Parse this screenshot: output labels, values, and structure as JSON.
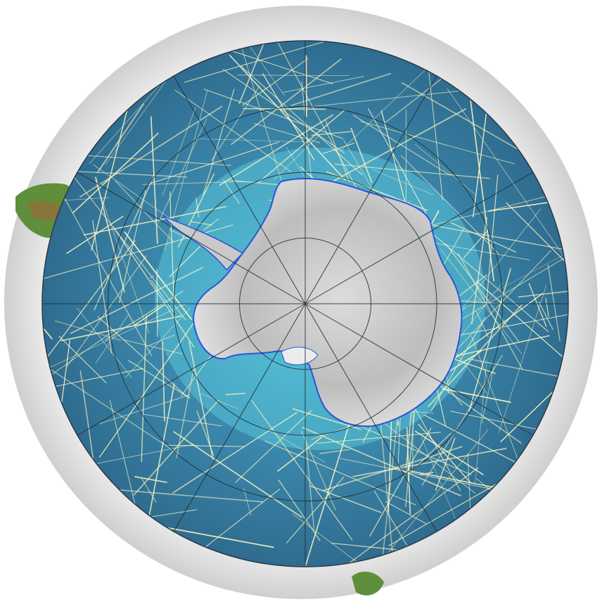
{
  "map": {
    "projection": "south-polar-stereographic",
    "colors": {
      "background": "#ffffff",
      "outer_ring": "#dcdcdc",
      "ocean_deep": "#2f6c8f",
      "ocean_mid": "#3e8fb3",
      "ocean_shelf": "#58c4d8",
      "tracks": "#fff7c2",
      "graticule": "#1e2a33",
      "ice": "#c9c9c9",
      "ice_light": "#ececec",
      "coastline": "#2b55d6",
      "land_green": "#5f8f3a",
      "land_brown": "#9b6a3c"
    },
    "layers": {
      "ship_tracks": true,
      "graticule": true,
      "coastline": true,
      "ice_sheet": true,
      "bathymetry": true
    },
    "graticule": {
      "meridian_step_deg": 30,
      "parallel_count": 3
    }
  }
}
